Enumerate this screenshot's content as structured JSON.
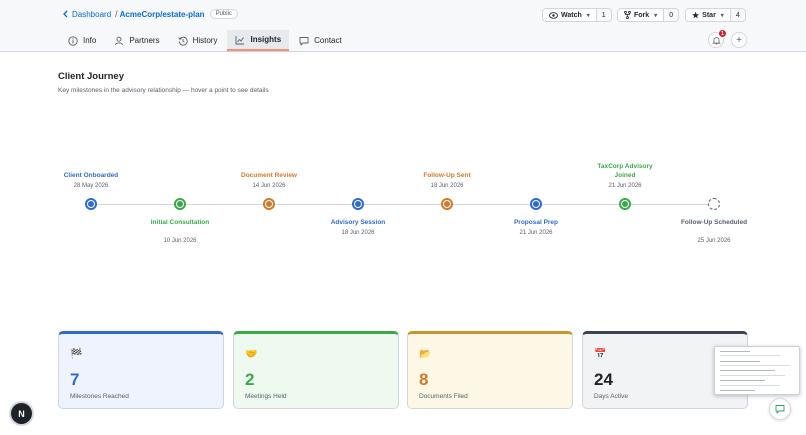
{
  "breadcrumb": {
    "back_label": "Dashboard",
    "separator": "/",
    "repo": "AcmeCorp/estate-plan",
    "visibility": "Public"
  },
  "repo_actions": [
    {
      "label": "Watch",
      "count": "1",
      "icon": "eye-icon"
    },
    {
      "label": "Fork",
      "count": "0",
      "icon": "fork-icon"
    },
    {
      "label": "Star",
      "count": "4",
      "icon": "star-icon"
    }
  ],
  "tabs": [
    {
      "label": "Info",
      "icon": "info-icon"
    },
    {
      "label": "Partners",
      "icon": "person-icon"
    },
    {
      "label": "History",
      "icon": "history-icon"
    },
    {
      "label": "Insights",
      "icon": "graph-icon",
      "active": true
    },
    {
      "label": "Contact",
      "icon": "comment-icon"
    }
  ],
  "notifications": {
    "count": "1"
  },
  "page": {
    "title": "Client Journey",
    "subtitle": "Key milestones in the advisory relationship — hover a point to see details"
  },
  "colors": {
    "blue": "#2f6ad0",
    "green": "#3aa94a",
    "orange": "#d07a2a",
    "gray": "#57606a"
  },
  "timeline": [
    {
      "title": "Client Onboarded",
      "date": "28 May 2026",
      "color": "blue",
      "side": "above"
    },
    {
      "title": "Initial Consultation",
      "date": "10 Jun 2026",
      "color": "green",
      "side": "below"
    },
    {
      "title": "Document Review",
      "date": "14 Jun 2026",
      "color": "orange",
      "side": "above"
    },
    {
      "title": "Advisory Session",
      "date": "18 Jun 2026",
      "color": "blue",
      "side": "below"
    },
    {
      "title": "Follow-Up Sent",
      "date": "18 Jun 2026",
      "color": "orange",
      "side": "above"
    },
    {
      "title": "Proposal Prep",
      "date": "21 Jun 2026",
      "color": "blue",
      "side": "below"
    },
    {
      "title": "TaxCorp Advisory Joined",
      "date": "21 Jun 2026",
      "color": "green",
      "side": "above"
    },
    {
      "title": "Follow-Up Scheduled",
      "date": "25 Jun 2026",
      "color": "gray",
      "side": "below",
      "pending": true
    }
  ],
  "stats": [
    {
      "icon": "🏁",
      "icon_name": "checkered-flag-icon",
      "value": "7",
      "label": "Milestones Reached",
      "accent": "#2f6ad0",
      "bg": "#eef3fd",
      "value_color": "#2f6ad0"
    },
    {
      "icon": "🤝",
      "icon_name": "handshake-icon",
      "value": "2",
      "label": "Meetings Held",
      "accent": "#3aa94a",
      "bg": "#eefaf0",
      "value_color": "#3aa94a"
    },
    {
      "icon": "📂",
      "icon_name": "folder-icon",
      "value": "8",
      "label": "Documents Filed",
      "accent": "#c9942f",
      "bg": "#fdf8e6",
      "value_color": "#d07a2a"
    },
    {
      "icon": "📅",
      "icon_name": "calendar-icon",
      "value": "24",
      "label": "Days Active",
      "accent": "#3d4451",
      "bg": "#f2f3f5",
      "value_color": "#1f2328"
    }
  ],
  "dev_badge": "N"
}
